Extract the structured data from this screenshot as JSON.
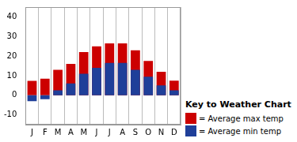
{
  "chart_data": {
    "type": "bar",
    "categories": [
      "J",
      "F",
      "M",
      "A",
      "M",
      "J",
      "J",
      "A",
      "S",
      "O",
      "N",
      "D"
    ],
    "series": [
      {
        "name": "= Average max temp",
        "color": "#cc0000",
        "values": [
          7.3,
          8.5,
          13,
          16,
          22,
          25,
          26.5,
          26.5,
          23,
          17.5,
          12,
          7.5
        ]
      },
      {
        "name": "= Average min temp",
        "color": "#1f3f99",
        "values": [
          -3,
          -2,
          2.5,
          6,
          11,
          14,
          16.5,
          16.5,
          13,
          9.5,
          5,
          2.5
        ]
      }
    ],
    "legend_title": "Key to Weather Chart",
    "ylim": [
      -15,
      45
    ],
    "yticks": [
      -10,
      0,
      10,
      20,
      30,
      40
    ],
    "grid": true,
    "legend": "lower right"
  }
}
